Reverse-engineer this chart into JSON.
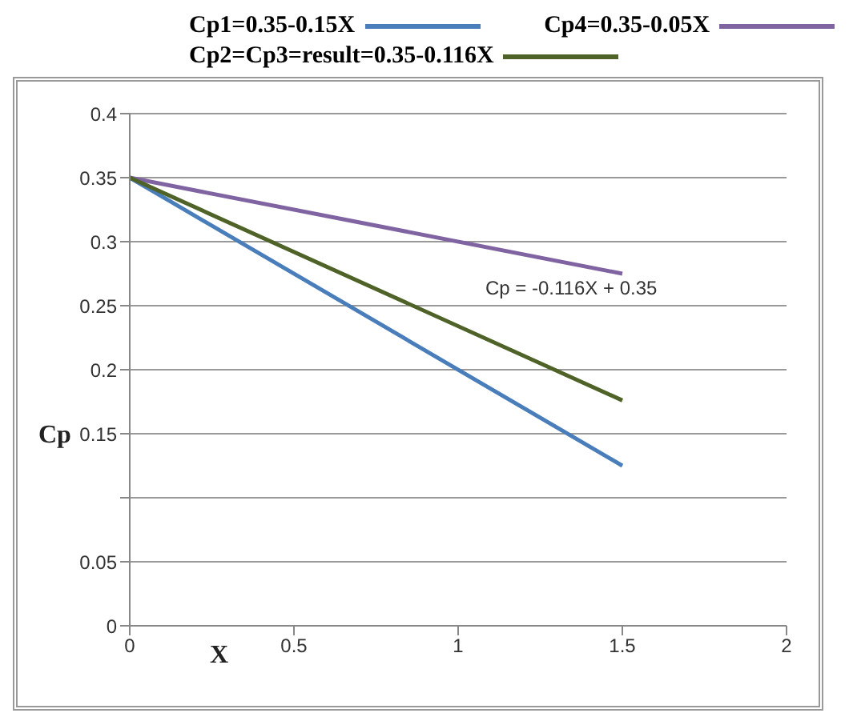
{
  "chart_data": {
    "type": "line",
    "xlabel": "X",
    "ylabel": "Cp",
    "x": [
      0,
      1.5
    ],
    "series": [
      {
        "name": "Cp1=0.35-0.15X",
        "color": "#4a7ebb",
        "values": [
          0.35,
          0.125
        ]
      },
      {
        "name": "Cp4=0.35-0.05X",
        "color": "#8064a2",
        "values": [
          0.35,
          0.275
        ]
      },
      {
        "name": "Cp2=Cp3=result=0.35-0.116X",
        "color": "#4f6228",
        "values": [
          0.35,
          0.176
        ]
      }
    ],
    "xlim": [
      0,
      2
    ],
    "xticks": [
      0,
      0.5,
      1,
      1.5,
      2
    ],
    "ylim": [
      0,
      0.4
    ],
    "yticks": [
      0,
      0.05,
      {
        "value": 0.1,
        "label": null
      },
      0.15,
      0.2,
      0.25,
      0.3,
      0.35,
      0.4
    ],
    "grid": "y",
    "legend": "top",
    "marker": "none",
    "line_style": "solid",
    "annotations": [
      "Cp = -0.116X + 0.35"
    ]
  }
}
